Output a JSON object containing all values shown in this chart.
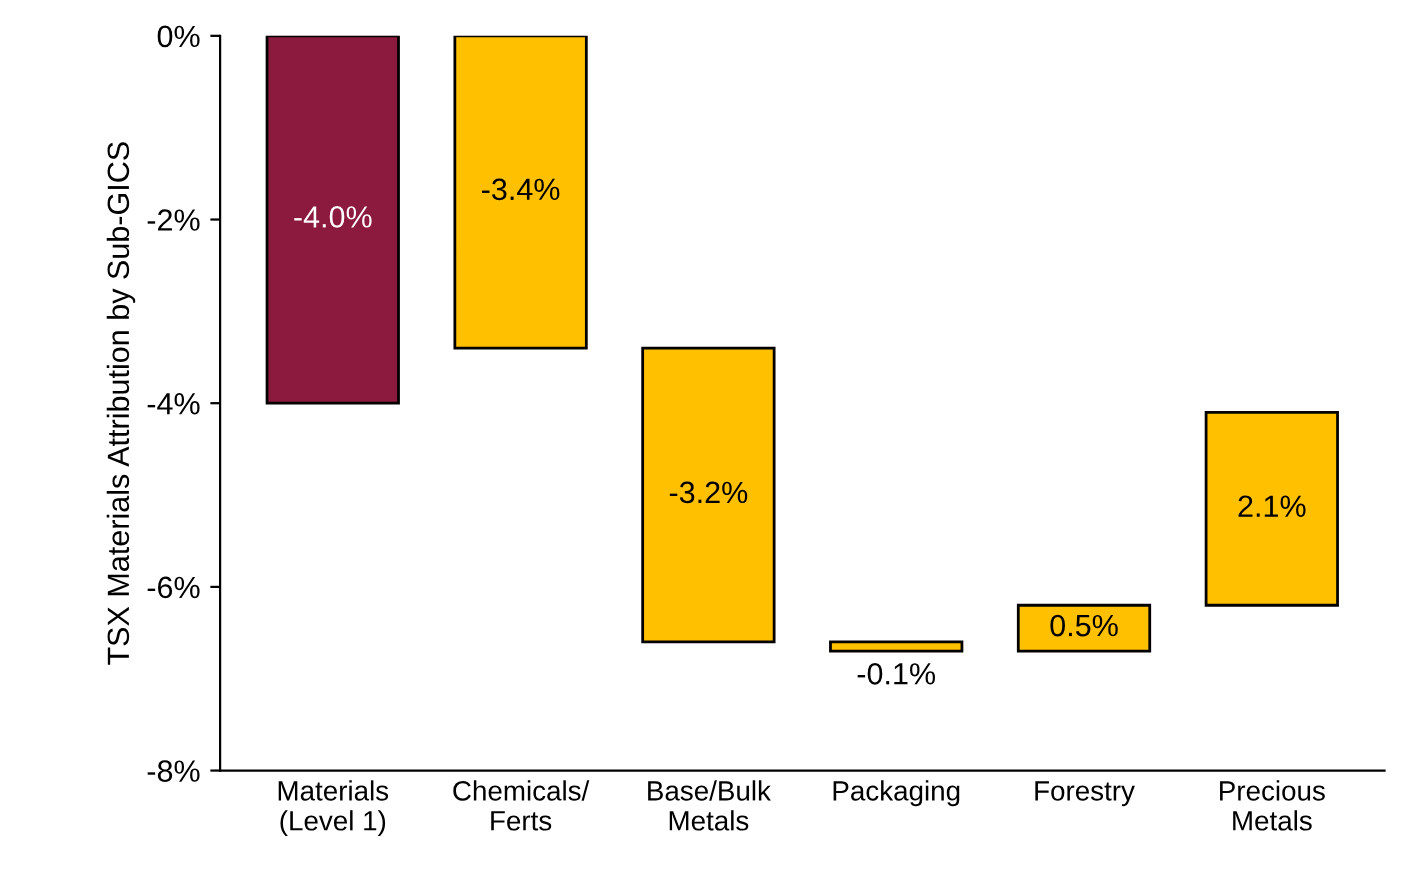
{
  "chart_data": {
    "type": "bar",
    "ylabel": "TSX Materials Attribution by Sub-GICS",
    "categories": [
      "Materials\n(Level 1)",
      "Chemicals/\nFerts",
      "Base/Bulk\nMetals",
      "Packaging",
      "Forestry",
      "Precious\nMetals"
    ],
    "values": [
      -4.0,
      -3.4,
      -3.2,
      -0.1,
      0.5,
      2.1
    ],
    "base": [
      0,
      0,
      -3.4,
      -6.6,
      -6.7,
      -6.2
    ],
    "colors": [
      "#8b1a3e",
      "#ffc000",
      "#ffc000",
      "#ffc000",
      "#ffc000",
      "#ffc000"
    ],
    "value_labels": [
      "-4.0%",
      "-3.4%",
      "-3.2%",
      "-0.1%",
      "0.5%",
      "2.1%"
    ],
    "ylim": [
      -8,
      0
    ],
    "yticks": [
      {
        "value": 0,
        "label": "0%"
      },
      {
        "value": -2,
        "label": "-2%"
      },
      {
        "value": -4,
        "label": "-4%"
      },
      {
        "value": -6,
        "label": "-6%"
      },
      {
        "value": -8,
        "label": "-8%"
      }
    ],
    "grid": false
  }
}
